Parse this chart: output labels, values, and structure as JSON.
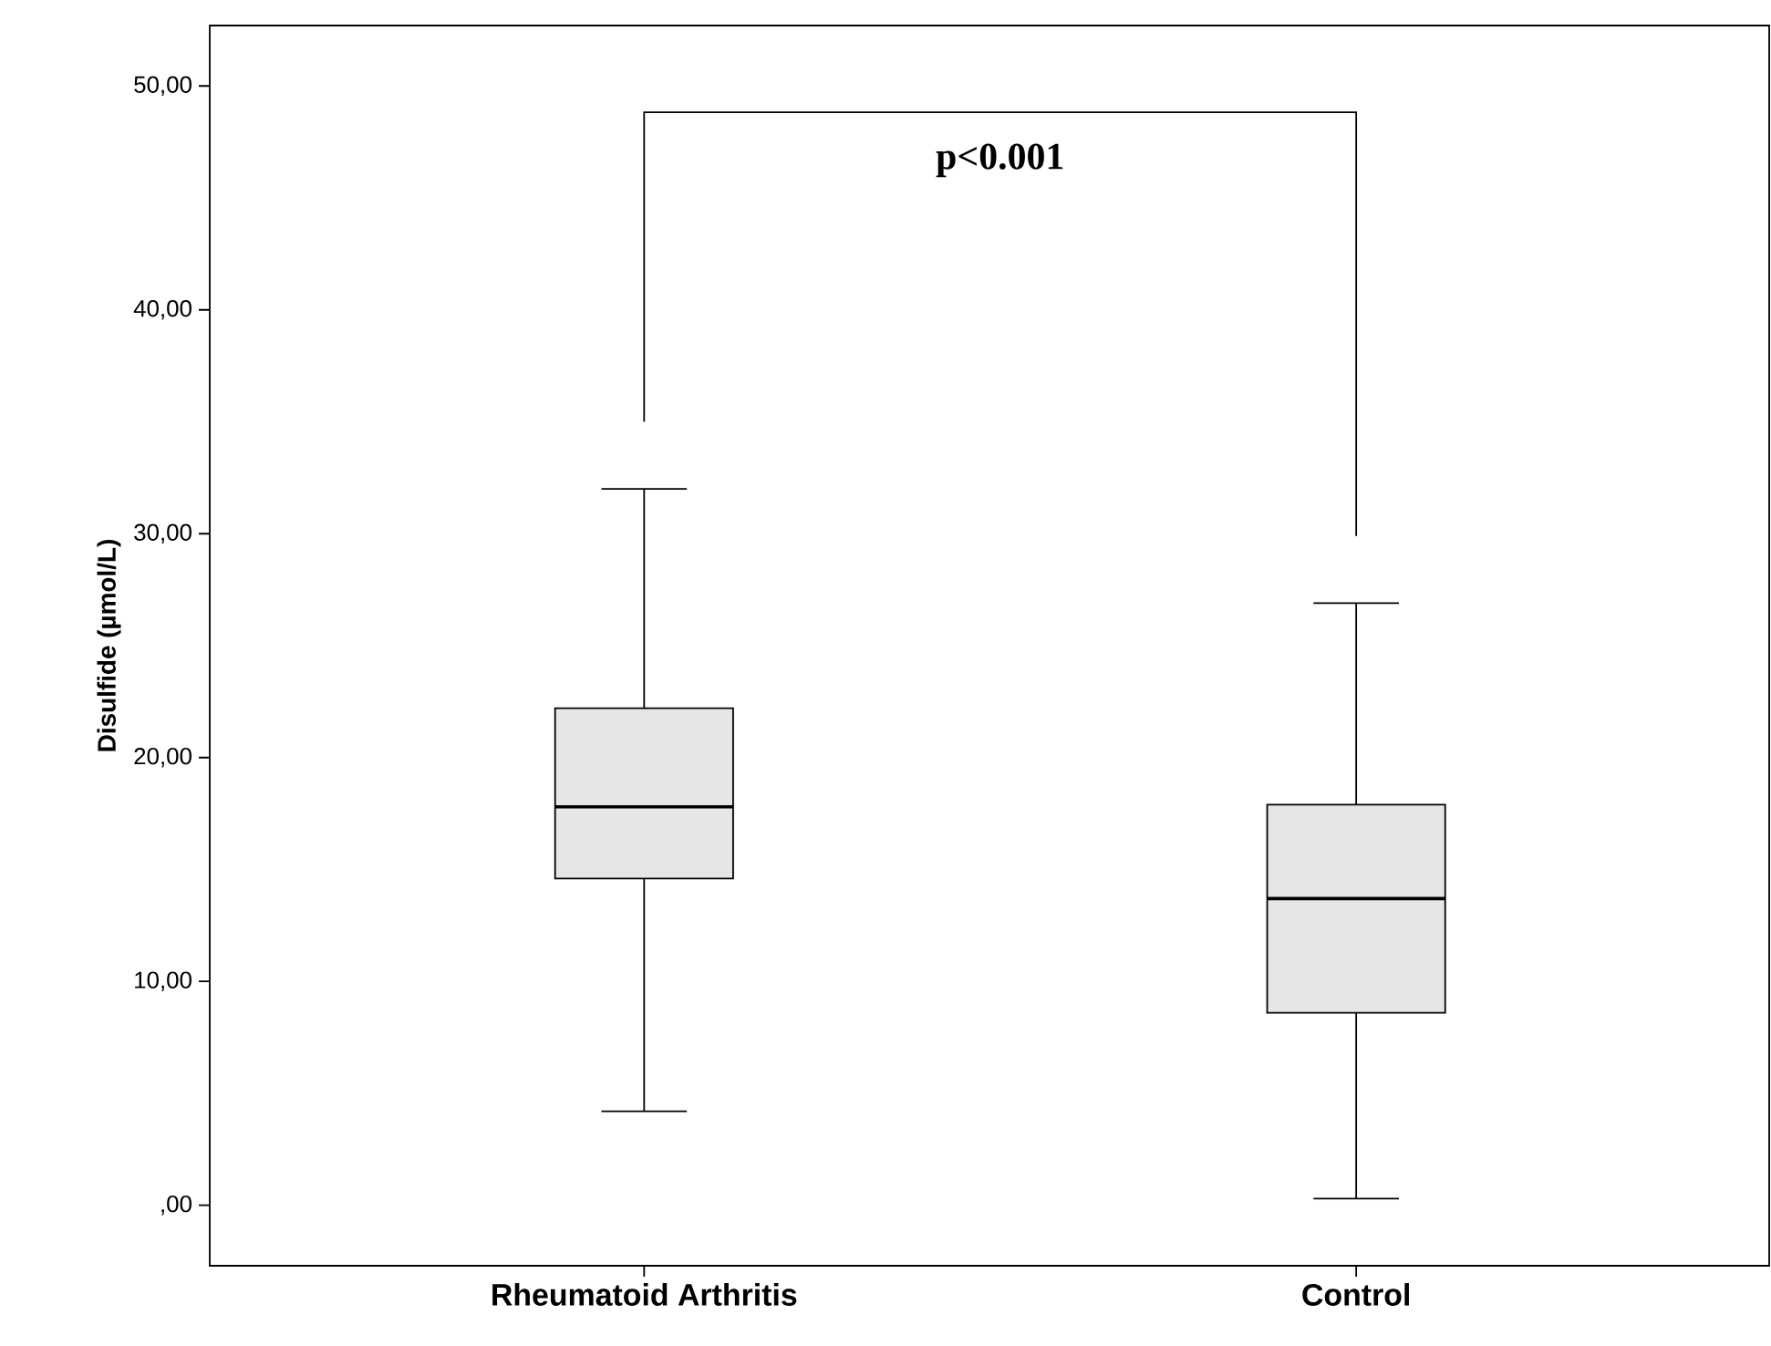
{
  "chart_data": {
    "type": "box",
    "ylabel": "Disulfide (µmol/L)",
    "categories": [
      "Rheumatoid Arthritis",
      "Control"
    ],
    "series": [
      {
        "color": "#e6e6e6",
        "boxes": [
          {
            "low": 4.2,
            "q1": 14.6,
            "median": 17.8,
            "q3": 22.2,
            "high": 32.0
          },
          {
            "low": 0.3,
            "q1": 8.6,
            "median": 13.7,
            "q3": 17.9,
            "high": 26.9
          }
        ]
      }
    ],
    "ylim": [
      -2.7,
      52.7
    ],
    "yticks": [
      {
        "value": 0,
        "label": ",00"
      },
      {
        "value": 10,
        "label": "10,00"
      },
      {
        "value": 20,
        "label": "20,00"
      },
      {
        "value": 30,
        "label": "30,00"
      },
      {
        "value": 40,
        "label": "40,00"
      },
      {
        "value": 50,
        "label": "50,00"
      }
    ],
    "annotations": [
      "p<0.001"
    ]
  }
}
